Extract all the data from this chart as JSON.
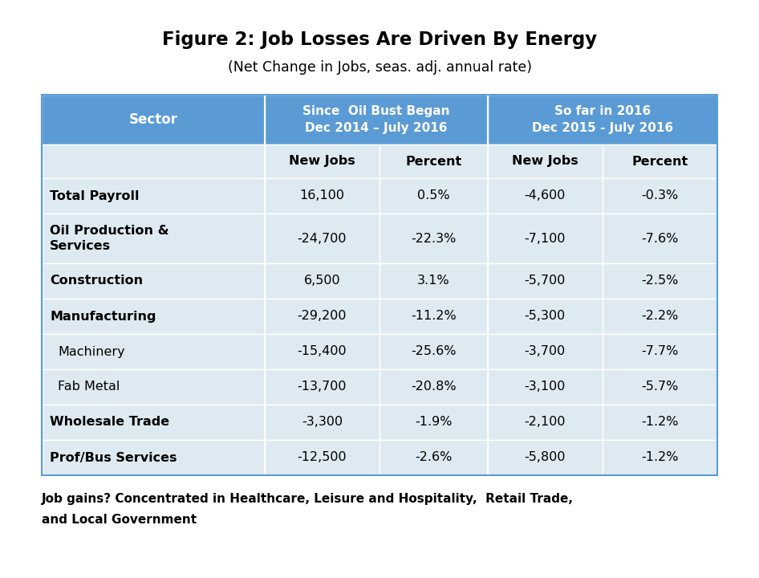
{
  "title": "Figure 2: Job Losses Are Driven By Energy",
  "subtitle": "(Net Change in Jobs, seas. adj. annual rate)",
  "header_color": "#5B9BD5",
  "subheader_bg": "#DEEAF1",
  "row_bg": "#DEEAF1",
  "col_headers_top": [
    "Sector",
    "Since  Oil Bust Began\nDec 2014 – July 2016",
    "So far in 2016\nDec 2015 - July 2016"
  ],
  "sub_col_headers": [
    "",
    "New Jobs",
    "Percent",
    "New Jobs",
    "Percent"
  ],
  "rows": [
    {
      "sector": "Total Payroll",
      "v1": "16,100",
      "v2": "0.5%",
      "v3": "-4,600",
      "v4": "-0.3%",
      "bold": true,
      "indent": false
    },
    {
      "sector": "Oil Production &\nServices",
      "v1": "-24,700",
      "v2": "-22.3%",
      "v3": "-7,100",
      "v4": "-7.6%",
      "bold": true,
      "indent": false
    },
    {
      "sector": "Construction",
      "v1": "6,500",
      "v2": "3.1%",
      "v3": "-5,700",
      "v4": "-2.5%",
      "bold": true,
      "indent": false
    },
    {
      "sector": "Manufacturing",
      "v1": "-29,200",
      "v2": "-11.2%",
      "v3": "-5,300",
      "v4": "-2.2%",
      "bold": true,
      "indent": false
    },
    {
      "sector": "Machinery",
      "v1": "-15,400",
      "v2": "-25.6%",
      "v3": "-3,700",
      "v4": "-7.7%",
      "bold": false,
      "indent": true
    },
    {
      "sector": "Fab Metal",
      "v1": "-13,700",
      "v2": "-20.8%",
      "v3": "-3,100",
      "v4": "-5.7%",
      "bold": false,
      "indent": true
    },
    {
      "sector": "Wholesale Trade",
      "v1": "-3,300",
      "v2": "-1.9%",
      "v3": "-2,100",
      "v4": "-1.2%",
      "bold": true,
      "indent": false
    },
    {
      "sector": "Prof/Bus Services",
      "v1": "-12,500",
      "v2": "-2.6%",
      "v3": "-5,800",
      "v4": "-1.2%",
      "bold": true,
      "indent": false
    }
  ],
  "footnote_line1": "Job gains? Concentrated in Healthcare, Leisure and Hospitality,  Retail Trade,",
  "footnote_line2": "and Local Government",
  "background_color": "#FFFFFF",
  "fig_width": 9.46,
  "fig_height": 7.2,
  "dpi": 100
}
